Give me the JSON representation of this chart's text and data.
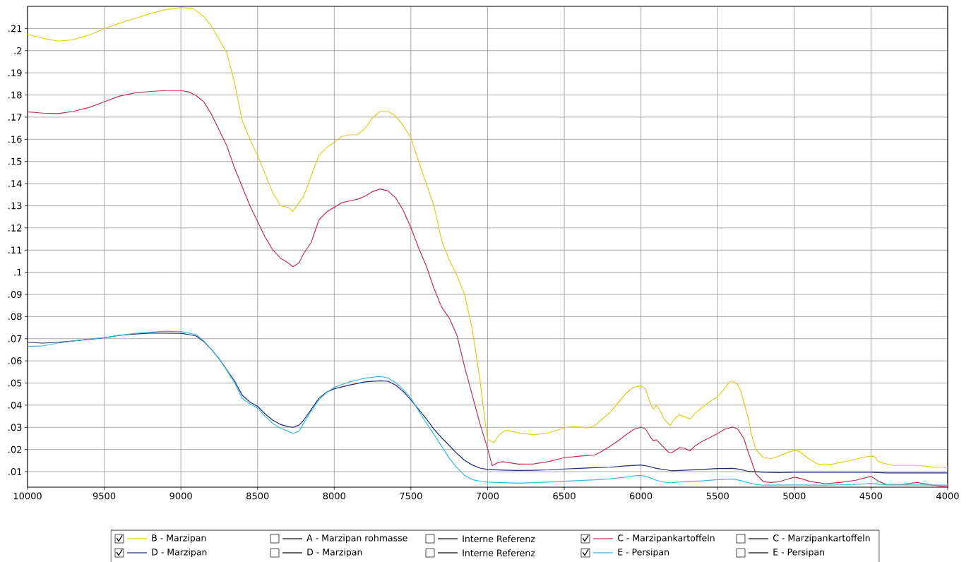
{
  "chart_data": {
    "type": "line",
    "xlim": [
      10000,
      4000
    ],
    "xticks": [
      10000,
      9500,
      9000,
      8500,
      8000,
      7500,
      7000,
      6500,
      6000,
      5500,
      5000,
      4500,
      4000
    ],
    "ylim": [
      0.003,
      0.22
    ],
    "yticks": [
      {
        "value": 0.01,
        "label": ".01"
      },
      {
        "value": 0.02,
        "label": ".02"
      },
      {
        "value": 0.03,
        "label": ".03"
      },
      {
        "value": 0.04,
        "label": ".04"
      },
      {
        "value": 0.05,
        "label": ".05"
      },
      {
        "value": 0.06,
        "label": ".06"
      },
      {
        "value": 0.07,
        "label": ".07"
      },
      {
        "value": 0.08,
        "label": ".08"
      },
      {
        "value": 0.09,
        "label": ".09"
      },
      {
        "value": 0.1,
        "label": ".1"
      },
      {
        "value": 0.11,
        "label": ".11"
      },
      {
        "value": 0.12,
        "label": ".12"
      },
      {
        "value": 0.13,
        "label": ".13"
      },
      {
        "value": 0.14,
        "label": ".14"
      },
      {
        "value": 0.15,
        "label": ".15"
      },
      {
        "value": 0.16,
        "label": ".16"
      },
      {
        "value": 0.17,
        "label": ".17"
      },
      {
        "value": 0.18,
        "label": ".18"
      },
      {
        "value": 0.19,
        "label": ".19"
      },
      {
        "value": 0.2,
        "label": ".2"
      },
      {
        "value": 0.21,
        "label": ".21"
      }
    ],
    "grid": true,
    "legend": "bottom",
    "series": [
      {
        "name": "B - Marzipan",
        "color": "#ddcf1f",
        "x": [
          10000,
          9900,
          9800,
          9700,
          9600,
          9500,
          9400,
          9300,
          9200,
          9100,
          9000,
          8920,
          8850,
          8800,
          8700,
          8650,
          8600,
          8550,
          8500,
          8450,
          8400,
          8350,
          8300,
          8270,
          8200,
          8150,
          8100,
          8050,
          8000,
          7950,
          7900,
          7850,
          7800,
          7750,
          7700,
          7650,
          7600,
          7550,
          7500,
          7450,
          7400,
          7350,
          7300,
          7250,
          7200,
          7150,
          7100,
          7050,
          7020,
          7000,
          6960,
          6920,
          6880,
          6800,
          6700,
          6600,
          6500,
          6450,
          6400,
          6350,
          6300,
          6250,
          6200,
          6150,
          6100,
          6050,
          6000,
          5970,
          5940,
          5920,
          5900,
          5880,
          5850,
          5810,
          5780,
          5750,
          5720,
          5680,
          5650,
          5600,
          5550,
          5500,
          5450,
          5420,
          5400,
          5370,
          5350,
          5300,
          5280,
          5250,
          5200,
          5150,
          5100,
          5050,
          5000,
          4970,
          4950,
          4900,
          4850,
          4800,
          4750,
          4700,
          4650,
          4600,
          4550,
          4500,
          4480,
          4450,
          4400,
          4350,
          4300,
          4250,
          4200,
          4150,
          4100,
          4050,
          4000
        ],
        "values": [
          0.2074,
          0.2056,
          0.2043,
          0.205,
          0.207,
          0.2099,
          0.2124,
          0.2145,
          0.2167,
          0.2185,
          0.2195,
          0.219,
          0.2153,
          0.211,
          0.199,
          0.1855,
          0.1684,
          0.16,
          0.1527,
          0.1442,
          0.1357,
          0.13,
          0.1293,
          0.1275,
          0.1343,
          0.1435,
          0.1527,
          0.1563,
          0.1587,
          0.1613,
          0.162,
          0.162,
          0.1648,
          0.1698,
          0.1726,
          0.1726,
          0.1705,
          0.1662,
          0.1606,
          0.15,
          0.14,
          0.13,
          0.1144,
          0.1056,
          0.0985,
          0.09,
          0.0743,
          0.0516,
          0.0346,
          0.0246,
          0.0231,
          0.0269,
          0.0287,
          0.0276,
          0.0266,
          0.0276,
          0.0297,
          0.0304,
          0.0301,
          0.0297,
          0.0308,
          0.0339,
          0.0368,
          0.041,
          0.0452,
          0.048,
          0.0487,
          0.0473,
          0.041,
          0.0382,
          0.0399,
          0.0382,
          0.0339,
          0.0308,
          0.0339,
          0.0356,
          0.0349,
          0.0337,
          0.0361,
          0.0389,
          0.0417,
          0.0438,
          0.048,
          0.0508,
          0.0508,
          0.0494,
          0.0466,
          0.0339,
          0.0269,
          0.0199,
          0.0163,
          0.0159,
          0.017,
          0.0185,
          0.0196,
          0.0192,
          0.0182,
          0.0156,
          0.0135,
          0.0131,
          0.0134,
          0.0142,
          0.0148,
          0.0156,
          0.0165,
          0.017,
          0.0168,
          0.0145,
          0.0135,
          0.0128,
          0.0128,
          0.0128,
          0.0128,
          0.0125,
          0.0121,
          0.012,
          0.0118
        ]
      },
      {
        "name": "A - Marzipan rohmasse"
      },
      {
        "name": "Interne Referenz"
      },
      {
        "name": "C - Marzipankartoffeln",
        "color": "#c03050",
        "x": [
          10000,
          9900,
          9800,
          9700,
          9600,
          9500,
          9400,
          9300,
          9200,
          9100,
          9000,
          8950,
          8900,
          8850,
          8800,
          8750,
          8700,
          8650,
          8600,
          8550,
          8500,
          8450,
          8400,
          8350,
          8300,
          8270,
          8230,
          8200,
          8150,
          8100,
          8050,
          8000,
          7950,
          7900,
          7850,
          7800,
          7750,
          7700,
          7650,
          7600,
          7550,
          7500,
          7450,
          7400,
          7350,
          7300,
          7250,
          7200,
          7150,
          7100,
          7050,
          7000,
          6970,
          6930,
          6900,
          6800,
          6700,
          6600,
          6500,
          6400,
          6300,
          6250,
          6200,
          6150,
          6100,
          6050,
          6000,
          5970,
          5940,
          5920,
          5900,
          5870,
          5820,
          5800,
          5750,
          5720,
          5680,
          5650,
          5600,
          5550,
          5500,
          5450,
          5400,
          5370,
          5330,
          5300,
          5250,
          5200,
          5150,
          5100,
          5050,
          5000,
          4950,
          4900,
          4800,
          4700,
          4600,
          4500,
          4450,
          4400,
          4300,
          4200,
          4100,
          4000
        ],
        "values": [
          0.1724,
          0.1718,
          0.1716,
          0.1726,
          0.1743,
          0.1769,
          0.1795,
          0.1809,
          0.1816,
          0.182,
          0.182,
          0.1814,
          0.1797,
          0.1769,
          0.1712,
          0.1641,
          0.157,
          0.147,
          0.1386,
          0.13,
          0.1229,
          0.1158,
          0.11,
          0.1063,
          0.1042,
          0.1025,
          0.1042,
          0.1084,
          0.1135,
          0.1236,
          0.1272,
          0.1293,
          0.1314,
          0.1322,
          0.1329,
          0.1343,
          0.1364,
          0.1376,
          0.1367,
          0.1336,
          0.1279,
          0.1201,
          0.111,
          0.1028,
          0.0928,
          0.0843,
          0.0793,
          0.0715,
          0.0573,
          0.0445,
          0.0317,
          0.0204,
          0.0127,
          0.0142,
          0.0145,
          0.0134,
          0.0135,
          0.0146,
          0.0163,
          0.017,
          0.0175,
          0.0194,
          0.0215,
          0.0239,
          0.0265,
          0.029,
          0.0301,
          0.0293,
          0.0258,
          0.0239,
          0.0244,
          0.0223,
          0.0187,
          0.0185,
          0.0208,
          0.0206,
          0.0194,
          0.0215,
          0.0237,
          0.0254,
          0.0272,
          0.0293,
          0.0301,
          0.0293,
          0.0251,
          0.0187,
          0.0089,
          0.0054,
          0.0051,
          0.0054,
          0.0065,
          0.0075,
          0.0068,
          0.0056,
          0.0046,
          0.0051,
          0.0061,
          0.0079,
          0.0056,
          0.0042,
          0.0042,
          0.0051,
          0.0039,
          0.0032
        ]
      },
      {
        "name": "C - Marzipankartoffeln"
      },
      {
        "name": "D - Marzipan",
        "color": "#1f2a78",
        "x": [
          10000,
          9900,
          9800,
          9700,
          9600,
          9500,
          9400,
          9300,
          9200,
          9100,
          9000,
          8950,
          8900,
          8850,
          8800,
          8750,
          8700,
          8650,
          8600,
          8550,
          8500,
          8450,
          8400,
          8350,
          8300,
          8270,
          8230,
          8200,
          8150,
          8100,
          8050,
          8000,
          7900,
          7800,
          7700,
          7650,
          7600,
          7550,
          7500,
          7450,
          7400,
          7350,
          7300,
          7250,
          7200,
          7150,
          7100,
          7050,
          7000,
          6900,
          6800,
          6700,
          6600,
          6500,
          6400,
          6300,
          6200,
          6100,
          6000,
          5950,
          5900,
          5800,
          5700,
          5600,
          5500,
          5400,
          5350,
          5300,
          5200,
          5100,
          5000,
          4800,
          4600,
          4500,
          4400,
          4300,
          4000
        ],
        "values": [
          0.0684,
          0.068,
          0.0684,
          0.069,
          0.0697,
          0.0704,
          0.0715,
          0.0721,
          0.0725,
          0.0725,
          0.0724,
          0.0719,
          0.0712,
          0.0687,
          0.0651,
          0.0609,
          0.0559,
          0.0509,
          0.0445,
          0.0414,
          0.0395,
          0.036,
          0.0332,
          0.0313,
          0.0303,
          0.03,
          0.031,
          0.0332,
          0.0381,
          0.0431,
          0.0459,
          0.0474,
          0.0491,
          0.0505,
          0.051,
          0.0508,
          0.0491,
          0.0462,
          0.0424,
          0.0381,
          0.0339,
          0.0292,
          0.0253,
          0.0218,
          0.0182,
          0.0151,
          0.013,
          0.0116,
          0.011,
          0.0107,
          0.0105,
          0.0106,
          0.0108,
          0.0112,
          0.0115,
          0.0118,
          0.012,
          0.0126,
          0.013,
          0.0124,
          0.0115,
          0.0104,
          0.0107,
          0.011,
          0.0114,
          0.0115,
          0.011,
          0.0101,
          0.0097,
          0.0096,
          0.0097,
          0.0097,
          0.0097,
          0.0097,
          0.0094,
          0.0094,
          0.0094
        ]
      },
      {
        "name": "D - Marzipan"
      },
      {
        "name": "Interne Referenz"
      },
      {
        "name": "E - Persipan",
        "color": "#3bb8dc",
        "x": [
          10000,
          9900,
          9800,
          9700,
          9600,
          9500,
          9400,
          9300,
          9200,
          9100,
          9000,
          8950,
          8900,
          8850,
          8800,
          8750,
          8700,
          8650,
          8600,
          8550,
          8500,
          8450,
          8400,
          8350,
          8300,
          8270,
          8230,
          8200,
          8150,
          8100,
          8050,
          8000,
          7900,
          7800,
          7700,
          7650,
          7600,
          7550,
          7500,
          7450,
          7400,
          7350,
          7300,
          7250,
          7200,
          7150,
          7100,
          7050,
          7000,
          6900,
          6800,
          6700,
          6600,
          6500,
          6400,
          6300,
          6200,
          6100,
          6050,
          6000,
          5950,
          5900,
          5850,
          5800,
          5700,
          5600,
          5500,
          5400,
          5350,
          5300,
          5250,
          5200,
          5000,
          4800,
          4600,
          4500,
          4450,
          4400,
          4200,
          4000
        ],
        "values": [
          0.0665,
          0.0668,
          0.068,
          0.069,
          0.0698,
          0.0705,
          0.0715,
          0.0724,
          0.0729,
          0.0734,
          0.0732,
          0.0726,
          0.0718,
          0.069,
          0.0651,
          0.0609,
          0.0556,
          0.0502,
          0.0431,
          0.0405,
          0.0388,
          0.0349,
          0.0317,
          0.0296,
          0.0282,
          0.0272,
          0.0282,
          0.0317,
          0.0374,
          0.0424,
          0.0457,
          0.0481,
          0.0505,
          0.0522,
          0.053,
          0.0523,
          0.0502,
          0.0471,
          0.0431,
          0.0374,
          0.032,
          0.0268,
          0.0215,
          0.0161,
          0.0118,
          0.0083,
          0.0064,
          0.0057,
          0.0053,
          0.005,
          0.0048,
          0.005,
          0.0053,
          0.0057,
          0.006,
          0.0063,
          0.0068,
          0.0075,
          0.0081,
          0.0083,
          0.0075,
          0.0061,
          0.0053,
          0.005,
          0.0056,
          0.0058,
          0.0064,
          0.0067,
          0.006,
          0.005,
          0.0042,
          0.0039,
          0.004,
          0.0039,
          0.0042,
          0.0047,
          0.0043,
          0.004,
          0.004,
          0.0039
        ]
      },
      {
        "name": "E - Persipan"
      }
    ]
  }
}
